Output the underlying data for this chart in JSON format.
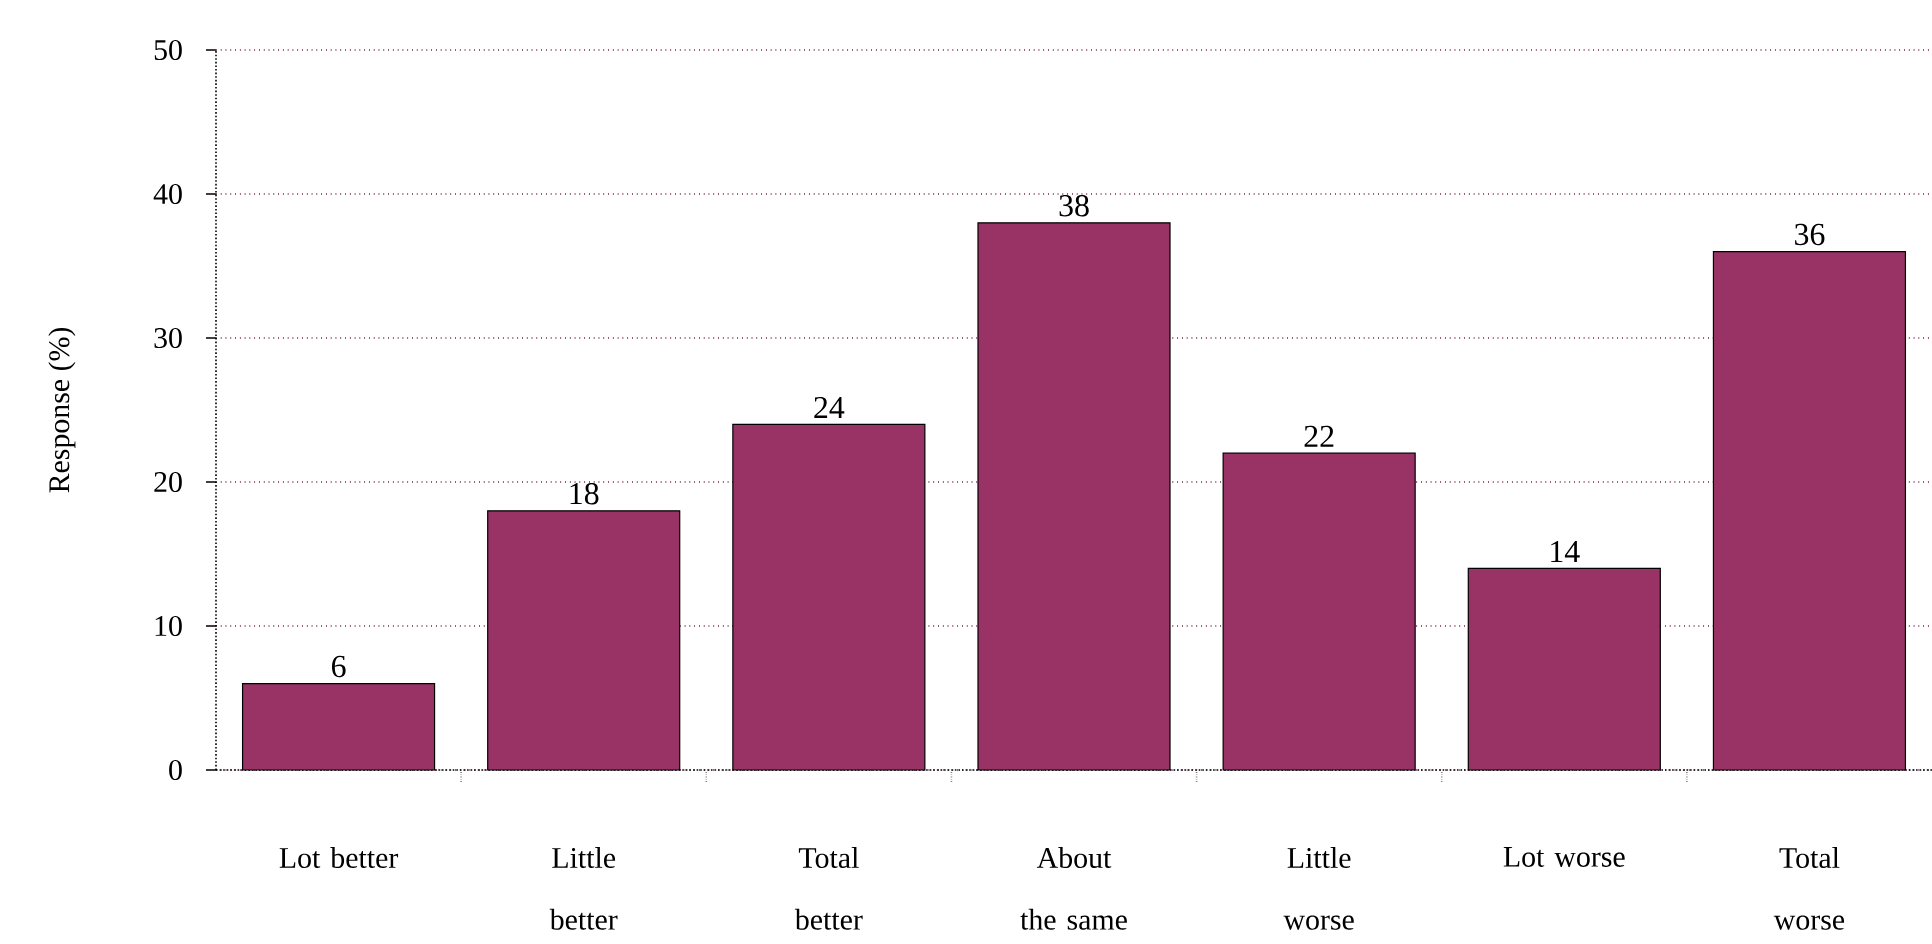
{
  "chart_data": {
    "type": "bar",
    "ylabel": "Response (%)",
    "categories": [
      "Lot better",
      "Little better",
      "Total better",
      "About the same",
      "Little worse",
      "Lot worse",
      "Total worse"
    ],
    "values": [
      6,
      18,
      24,
      38,
      22,
      14,
      36
    ],
    "color": "#993366",
    "ylim": [
      0,
      50
    ],
    "yticks": [
      0,
      10,
      20,
      30,
      40,
      50
    ],
    "grid": "y",
    "data_labels": true
  }
}
